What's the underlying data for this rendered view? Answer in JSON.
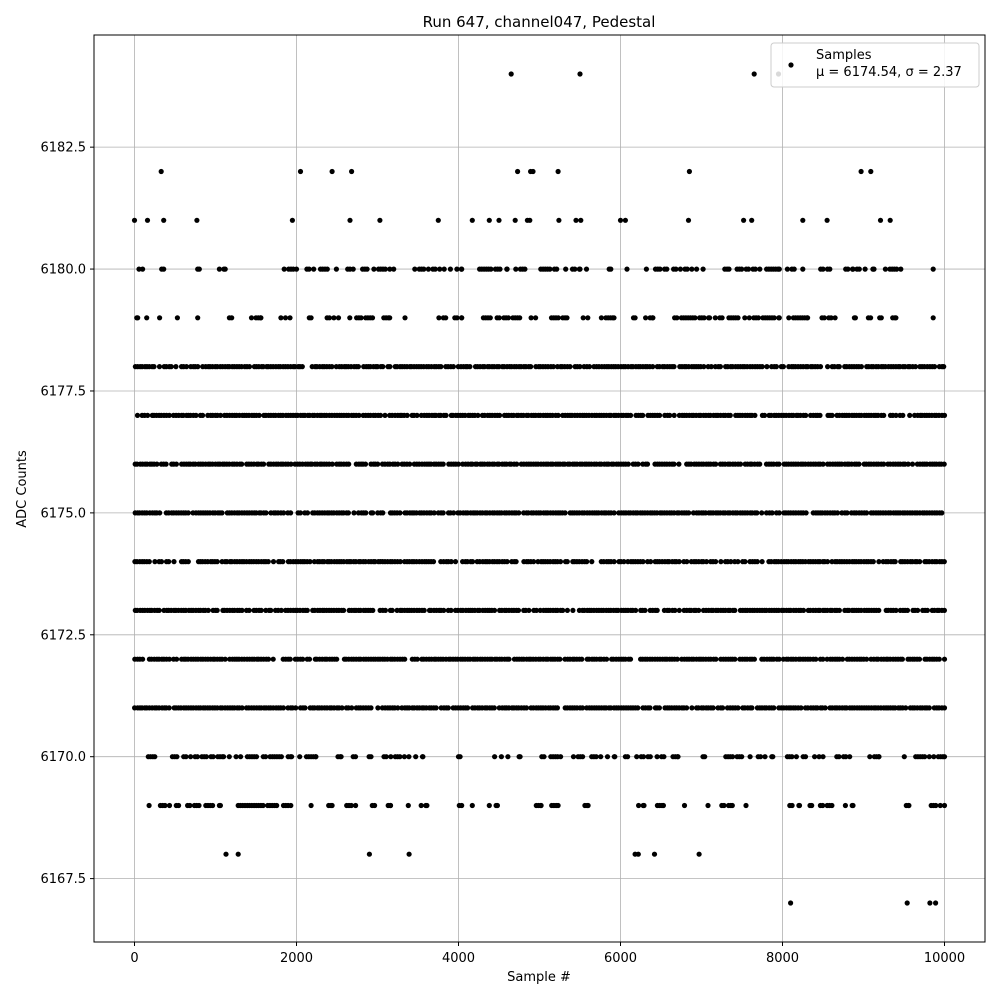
{
  "chart_data": {
    "type": "scatter",
    "title": "Run 647, channel047, Pedestal",
    "xlabel": "Sample #",
    "ylabel": "ADC Counts",
    "xlim": [
      -500,
      10500
    ],
    "ylim": [
      6166.2,
      6184.8
    ],
    "x_ticks": [
      0,
      2000,
      4000,
      6000,
      8000,
      10000
    ],
    "x_tick_labels": [
      "0",
      "2000",
      "4000",
      "6000",
      "8000",
      "10000"
    ],
    "y_ticks": [
      6167.5,
      6170.0,
      6172.5,
      6175.0,
      6177.5,
      6180.0,
      6182.5
    ],
    "y_tick_labels": [
      "6167.5",
      "6170.0",
      "6172.5",
      "6175.0",
      "6177.5",
      "6180.0",
      "6182.5"
    ],
    "grid": true,
    "legend_position": "top-right",
    "marker_color": "#000000",
    "series": [
      {
        "name": "Samples",
        "stats_label": "μ = 6174.54, σ = 2.37",
        "dense_levels": [
          {
            "y": 6171,
            "x_range": [
              0,
              10000
            ]
          },
          {
            "y": 6172,
            "x_range": [
              0,
              10000
            ]
          },
          {
            "y": 6173,
            "x_range": [
              0,
              10000
            ]
          },
          {
            "y": 6174,
            "x_range": [
              0,
              10000
            ]
          },
          {
            "y": 6175,
            "x_range": [
              0,
              10000
            ]
          },
          {
            "y": 6176,
            "x_range": [
              0,
              10000
            ]
          },
          {
            "y": 6177,
            "x_range": [
              0,
              10000
            ]
          },
          {
            "y": 6178,
            "x_range": [
              0,
              10000
            ]
          }
        ],
        "points": [
          {
            "x": 4650,
            "y": 6184
          },
          {
            "x": 5500,
            "y": 6184
          },
          {
            "x": 7650,
            "y": 6184
          },
          {
            "x": 7950,
            "y": 6184
          },
          {
            "x": 330,
            "y": 6182
          },
          {
            "x": 2050,
            "y": 6182
          },
          {
            "x": 2440,
            "y": 6182
          },
          {
            "x": 2680,
            "y": 6182
          },
          {
            "x": 4730,
            "y": 6182
          },
          {
            "x": 4890,
            "y": 6182
          },
          {
            "x": 4920,
            "y": 6182
          },
          {
            "x": 5230,
            "y": 6182
          },
          {
            "x": 6850,
            "y": 6182
          },
          {
            "x": 8970,
            "y": 6182
          },
          {
            "x": 9090,
            "y": 6182
          },
          {
            "x": 0,
            "y": 6181
          },
          {
            "x": 160,
            "y": 6181
          },
          {
            "x": 360,
            "y": 6181
          },
          {
            "x": 770,
            "y": 6181
          },
          {
            "x": 1950,
            "y": 6181
          },
          {
            "x": 2660,
            "y": 6181
          },
          {
            "x": 3030,
            "y": 6181
          },
          {
            "x": 3750,
            "y": 6181
          },
          {
            "x": 4170,
            "y": 6181
          },
          {
            "x": 4380,
            "y": 6181
          },
          {
            "x": 4500,
            "y": 6181
          },
          {
            "x": 4700,
            "y": 6181
          },
          {
            "x": 4850,
            "y": 6181
          },
          {
            "x": 4880,
            "y": 6181
          },
          {
            "x": 5240,
            "y": 6181
          },
          {
            "x": 5450,
            "y": 6181
          },
          {
            "x": 5510,
            "y": 6181
          },
          {
            "x": 6000,
            "y": 6181
          },
          {
            "x": 6060,
            "y": 6181
          },
          {
            "x": 6840,
            "y": 6181
          },
          {
            "x": 7520,
            "y": 6181
          },
          {
            "x": 7620,
            "y": 6181
          },
          {
            "x": 8250,
            "y": 6181
          },
          {
            "x": 8550,
            "y": 6181
          },
          {
            "x": 9210,
            "y": 6181
          },
          {
            "x": 9330,
            "y": 6181
          },
          {
            "x": 1130,
            "y": 6168
          },
          {
            "x": 1280,
            "y": 6168
          },
          {
            "x": 2900,
            "y": 6168
          },
          {
            "x": 3390,
            "y": 6168
          },
          {
            "x": 6180,
            "y": 6168
          },
          {
            "x": 6220,
            "y": 6168
          },
          {
            "x": 6420,
            "y": 6168
          },
          {
            "x": 6970,
            "y": 6168
          },
          {
            "x": 8100,
            "y": 6167
          },
          {
            "x": 9540,
            "y": 6167
          },
          {
            "x": 9820,
            "y": 6167
          },
          {
            "x": 9890,
            "y": 6167
          }
        ],
        "sparse_levels": [
          {
            "y": 6180,
            "x_segments": [
              [
                0,
                100
              ],
              [
                280,
                360
              ],
              [
                780,
                800
              ],
              [
                1020,
                1120
              ],
              [
                1820,
                2000
              ],
              [
                2100,
                2700
              ],
              [
                2760,
                3200
              ],
              [
                3460,
                3900
              ],
              [
                3980,
                4040
              ],
              [
                4260,
                4600
              ],
              [
                4680,
                5500
              ],
              [
                5580,
                5580
              ],
              [
                5860,
                5880
              ],
              [
                6000,
                6080
              ],
              [
                6320,
                6940
              ],
              [
                7020,
                7020
              ],
              [
                7260,
                7340
              ],
              [
                7440,
                7960
              ],
              [
                8060,
                8250
              ],
              [
                8360,
                8870
              ],
              [
                8920,
                9020
              ],
              [
                9060,
                9130
              ],
              [
                9270,
                9460
              ],
              [
                9860,
                9860
              ]
            ]
          },
          {
            "y": 6179,
            "x_segments": [
              [
                0,
                40
              ],
              [
                150,
                310
              ],
              [
                530,
                530
              ],
              [
                780,
                780
              ],
              [
                1060,
                1200
              ],
              [
                1360,
                1560
              ],
              [
                1780,
                1920
              ],
              [
                2130,
                2180
              ],
              [
                2350,
                3150
              ],
              [
                3340,
                3340
              ],
              [
                3730,
                4040
              ],
              [
                4280,
                5340
              ],
              [
                5540,
                5920
              ],
              [
                6160,
                6180
              ],
              [
                6310,
                6400
              ],
              [
                6640,
                7100
              ],
              [
                7170,
                7960
              ],
              [
                8050,
                8310
              ],
              [
                8460,
                8650
              ],
              [
                8860,
                8900
              ],
              [
                9060,
                9220
              ],
              [
                9360,
                9400
              ],
              [
                9860,
                9860
              ]
            ]
          },
          {
            "y": 6170,
            "x_segments": [
              [
                170,
                250
              ],
              [
                440,
                1100
              ],
              [
                1170,
                1940
              ],
              [
                2040,
                2240
              ],
              [
                2400,
                2550
              ],
              [
                2700,
                2920
              ],
              [
                3080,
                3560
              ],
              [
                4000,
                4020
              ],
              [
                4390,
                4610
              ],
              [
                4720,
                4760
              ],
              [
                5000,
                5260
              ],
              [
                5420,
                5930
              ],
              [
                6060,
                6710
              ],
              [
                6990,
                7040
              ],
              [
                7300,
                7600
              ],
              [
                7700,
                7880
              ],
              [
                8060,
                8500
              ],
              [
                8670,
                8830
              ],
              [
                9050,
                9190
              ],
              [
                9420,
                10000
              ]
            ]
          },
          {
            "y": 6169,
            "x_segments": [
              [
                180,
                190
              ],
              [
                320,
                1060
              ],
              [
                1140,
                1930
              ],
              [
                2180,
                2180
              ],
              [
                2370,
                2440
              ],
              [
                2620,
                2730
              ],
              [
                2880,
                3160
              ],
              [
                3350,
                3380
              ],
              [
                3540,
                3610
              ],
              [
                4010,
                4040
              ],
              [
                4170,
                4170
              ],
              [
                4380,
                4480
              ],
              [
                4960,
                5020
              ],
              [
                5150,
                5230
              ],
              [
                5560,
                5600
              ],
              [
                6140,
                6290
              ],
              [
                6400,
                6530
              ],
              [
                6790,
                6790
              ],
              [
                7080,
                7080
              ],
              [
                7250,
                7380
              ],
              [
                7550,
                7550
              ],
              [
                8090,
                8210
              ],
              [
                8340,
                8360
              ],
              [
                8440,
                8610
              ],
              [
                8720,
                8870
              ],
              [
                9500,
                9560
              ],
              [
                9780,
                10000
              ]
            ]
          }
        ]
      }
    ]
  }
}
